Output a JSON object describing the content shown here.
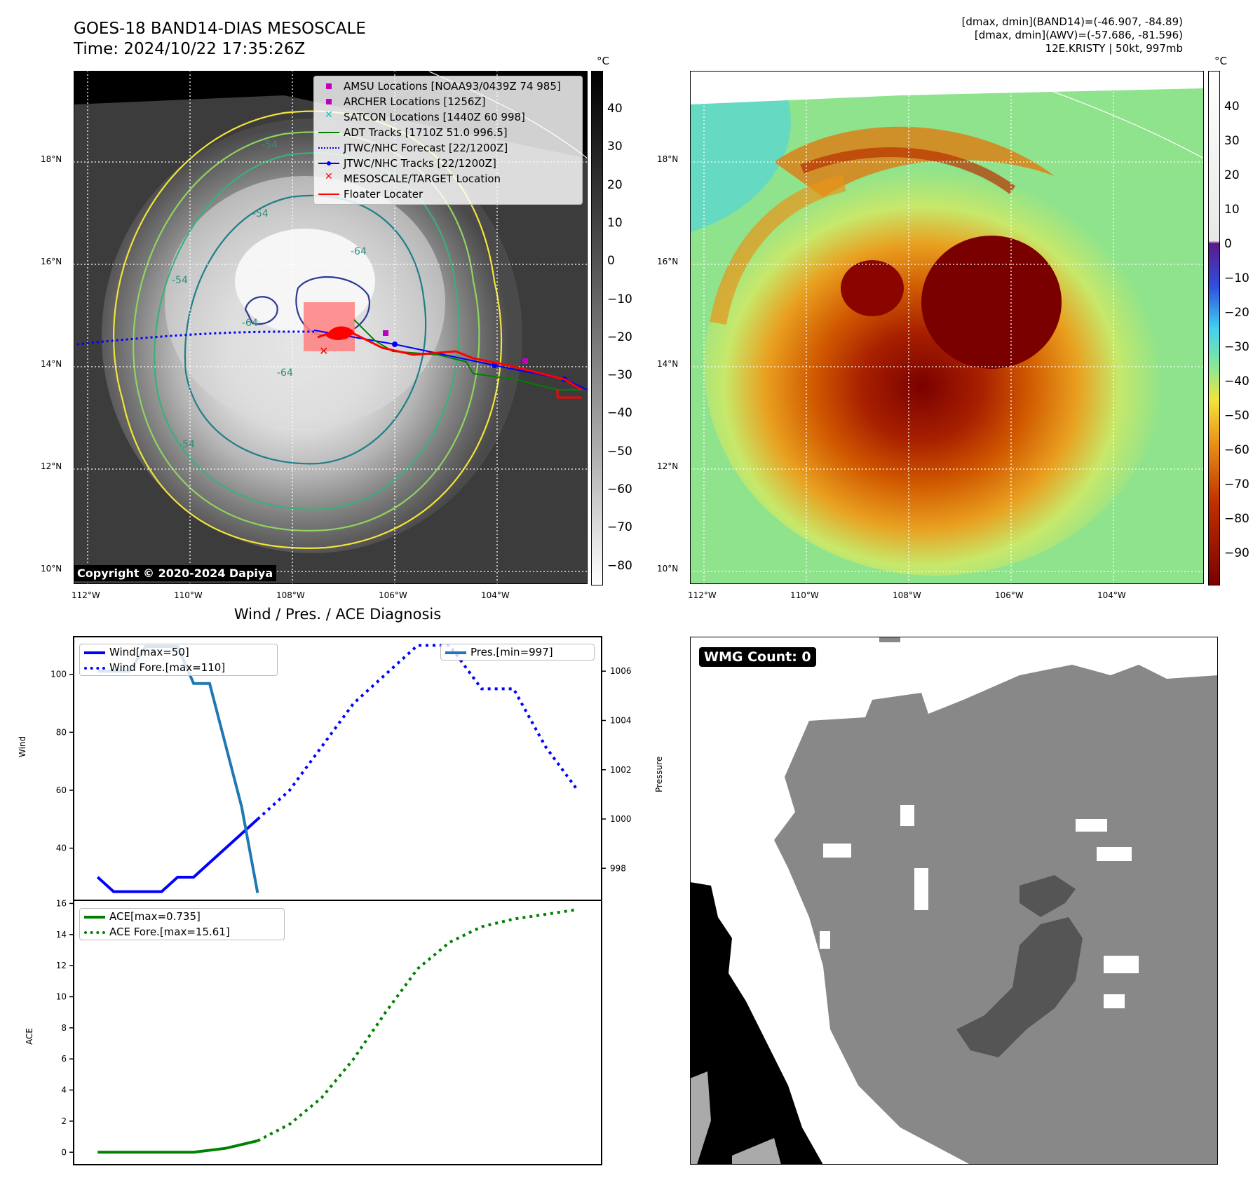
{
  "header": {
    "title_line1": "GOES-18 BAND14-DIAS MESOSCALE",
    "title_line2": "Time: 2024/10/22 17:35:26Z",
    "right_line1": "[dmax, dmin](BAND14)=(-46.907, -84.89)",
    "right_line2": "[dmax, dmin](AWV)=(-57.686, -81.596)",
    "right_line3": "12E.KRISTY | 50kt, 997mb"
  },
  "map": {
    "lat_labels": [
      "18°N",
      "16°N",
      "14°N",
      "12°N",
      "10°N"
    ],
    "lon_labels": [
      "112°W",
      "110°W",
      "108°W",
      "106°W",
      "104°W"
    ],
    "copyright": "Copyright © 2020-2024 Dapiya",
    "contour_labels": [
      "-54",
      "-64",
      "-54",
      "-64",
      "-54",
      "-64",
      "-54"
    ],
    "legend": [
      {
        "label": "AMSU Locations [NOAA93/0439Z 74 985]",
        "color": "#c000c0",
        "kind": "square"
      },
      {
        "label": "ARCHER Locations [1256Z]",
        "color": "#c000c0",
        "kind": "square"
      },
      {
        "label": "SATCON Locations [1440Z 60 998]",
        "color": "#20c0c0",
        "kind": "x"
      },
      {
        "label": "ADT Tracks [1710Z 51.0 996.5]",
        "color": "#008000",
        "kind": "line"
      },
      {
        "label": "JTWC/NHC Forecast [22/1200Z]",
        "color": "#0000ff",
        "kind": "dotted"
      },
      {
        "label": "JTWC/NHC Tracks [22/1200Z]",
        "color": "#0000ff",
        "kind": "lineDot"
      },
      {
        "label": "MESOSCALE/TARGET Location",
        "color": "#ff0000",
        "kind": "x"
      },
      {
        "label": "Floater Locater",
        "color": "#ff0000",
        "kind": "line"
      }
    ]
  },
  "colorbar_left": {
    "unit": "°C",
    "ticks": [
      "40",
      "30",
      "20",
      "10",
      "0",
      "−10",
      "−20",
      "−30",
      "−40",
      "−50",
      "−60",
      "−70",
      "−80"
    ]
  },
  "colorbar_right": {
    "unit": "°C",
    "ticks": [
      "40",
      "30",
      "20",
      "10",
      "0",
      "−10",
      "−20",
      "−30",
      "−40",
      "−50",
      "−60",
      "−70",
      "−80",
      "−90"
    ]
  },
  "diagnosis": {
    "title": "Wind / Pres. / ACE Diagnosis",
    "wind_ylabel": "Wind",
    "pres_ylabel": "Pressure",
    "ace_ylabel": "ACE",
    "wind_legend": [
      "Wind[max=50]",
      "Wind Fore.[max=110]"
    ],
    "pres_legend": [
      "Pres.[min=997]"
    ],
    "ace_legend": [
      "ACE[max=0.735]",
      "ACE Fore.[max=15.61]"
    ],
    "wind_ticks": [
      "100",
      "80",
      "60",
      "40"
    ],
    "pres_ticks": [
      "1006",
      "1004",
      "1002",
      "1000",
      "998"
    ],
    "ace_ticks": [
      "16",
      "14",
      "12",
      "10",
      "8",
      "6",
      "4",
      "2",
      "0"
    ]
  },
  "wmg": {
    "label": "WMG Count: 0"
  },
  "chart_data": [
    {
      "type": "line",
      "title": "Wind / Pres. / ACE Diagnosis",
      "ylabel": "Wind",
      "ylim": [
        22,
        113
      ],
      "series": [
        {
          "name": "Wind[max=50]",
          "color": "#0000ff",
          "style": "solid",
          "x": [
            0,
            1,
            2,
            3,
            4,
            5,
            6,
            7,
            8,
            9,
            10
          ],
          "values": [
            30,
            25,
            25,
            25,
            25,
            30,
            30,
            35,
            40,
            45,
            50
          ]
        },
        {
          "name": "Wind Fore.[max=110]",
          "color": "#0000ff",
          "style": "dotted",
          "x": [
            10,
            12,
            14,
            16,
            18,
            20,
            22,
            24,
            26,
            28,
            30
          ],
          "values": [
            50,
            60,
            75,
            90,
            100,
            110,
            110,
            95,
            95,
            75,
            60
          ]
        }
      ]
    },
    {
      "type": "line",
      "ylabel": "Pressure",
      "ylim": [
        996.7,
        1007.4
      ],
      "series": [
        {
          "name": "Pres.[min=997]",
          "color": "#1f77b4",
          "style": "solid",
          "x": [
            0,
            1,
            2,
            3,
            4,
            5,
            6,
            7,
            8,
            9,
            10
          ],
          "values": [
            1006,
            1006,
            1006,
            1007,
            1007,
            1007,
            1005.5,
            1005.5,
            1003,
            1000.5,
            997
          ]
        }
      ]
    },
    {
      "type": "line",
      "ylabel": "ACE",
      "ylim": [
        -0.8,
        16.2
      ],
      "series": [
        {
          "name": "ACE[max=0.735]",
          "color": "#008000",
          "style": "solid",
          "x": [
            0,
            2,
            4,
            6,
            8,
            10
          ],
          "values": [
            0,
            0,
            0,
            0,
            0.25,
            0.735
          ]
        },
        {
          "name": "ACE Fore.[max=15.61]",
          "color": "#008000",
          "style": "dotted",
          "x": [
            10,
            12,
            14,
            16,
            18,
            20,
            22,
            24,
            26,
            28,
            30
          ],
          "values": [
            0.735,
            1.8,
            3.5,
            6,
            9,
            11.8,
            13.5,
            14.5,
            15,
            15.3,
            15.61
          ]
        }
      ]
    }
  ]
}
